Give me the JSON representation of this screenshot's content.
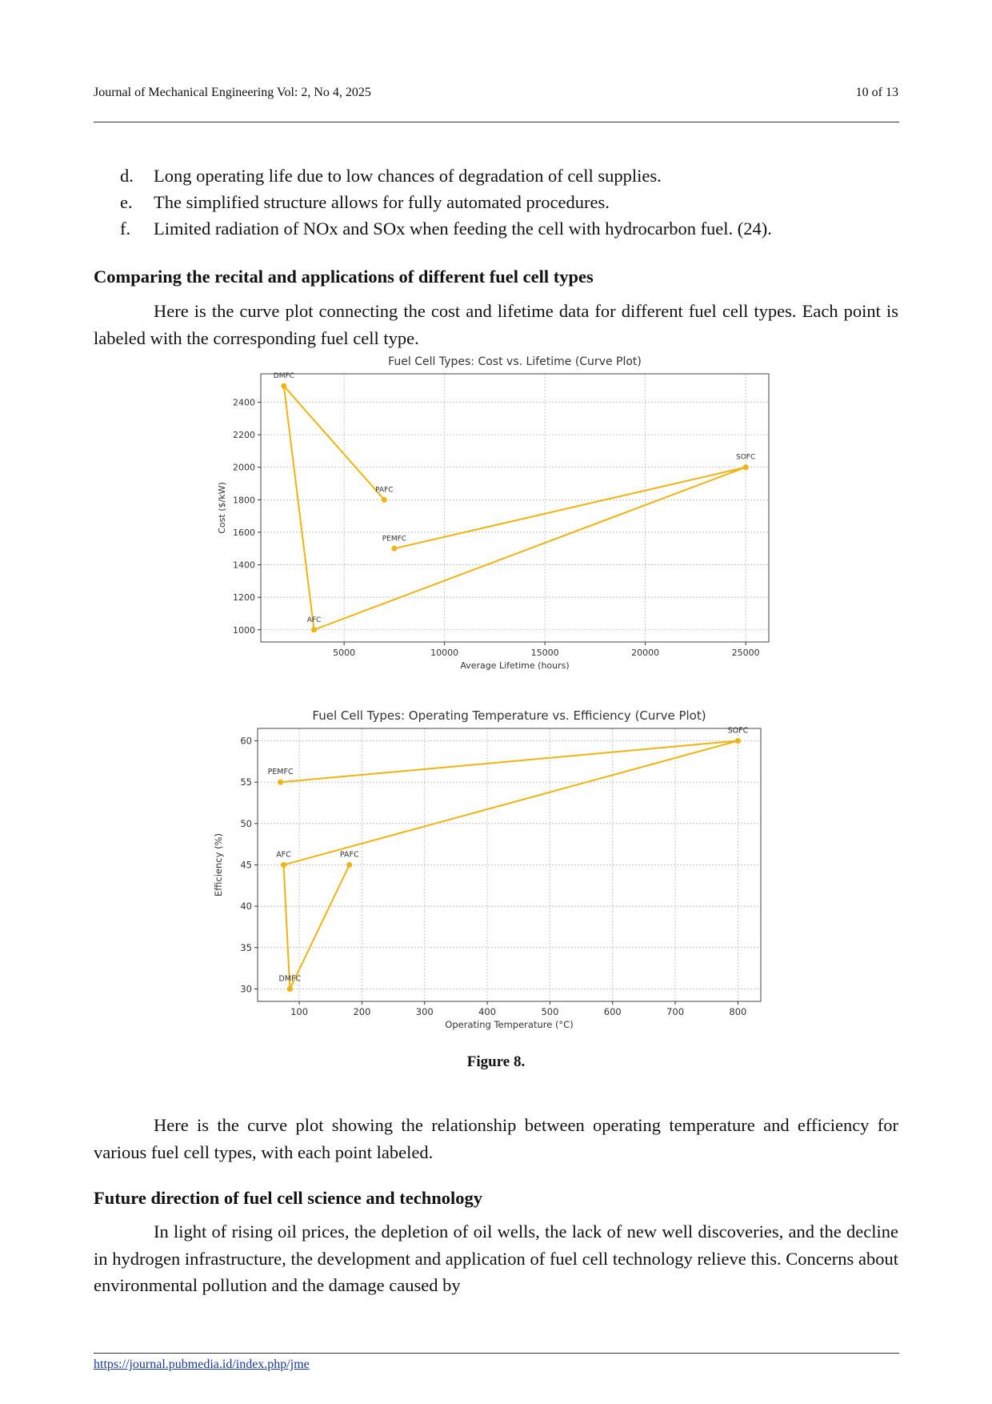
{
  "header": {
    "journal": "Journal of Mechanical Engineering Vol: 2, No 4, 2025",
    "page": "10 of 13"
  },
  "list": [
    {
      "marker": "d.",
      "text": "Long operating life due to low chances of degradation of cell supplies."
    },
    {
      "marker": "e.",
      "text": "The simplified structure allows for fully automated procedures."
    },
    {
      "marker": "f.",
      "text": "Limited radiation of NOx and SOx when feeding the cell with hydrocarbon fuel. (24)."
    }
  ],
  "section_1": {
    "heading": "Comparing the recital and applications of different fuel cell types",
    "paragraph": "Here is the curve plot connecting the cost and lifetime data for different fuel cell types. Each point is labeled with the corresponding fuel cell type."
  },
  "chart_data": [
    {
      "type": "line",
      "title": "Fuel Cell Types: Cost vs. Lifetime (Curve Plot)",
      "x_label": "Average Lifetime (hours)",
      "y_label": "Cost ($/kW)",
      "point_labels": [
        "PEMFC",
        "SOFC",
        "AFC",
        "DMFC",
        "PAFC"
      ],
      "x": [
        7500,
        25000,
        3500,
        2000,
        7000
      ],
      "values": [
        1500,
        2000,
        1000,
        2500,
        1800
      ],
      "color": "#f0b30f",
      "xlim": [
        850,
        26150
      ],
      "ylim": [
        925,
        2575
      ],
      "xticks": [
        5000,
        10000,
        15000,
        20000,
        25000
      ],
      "yticks": [
        1000,
        1200,
        1400,
        1600,
        1800,
        2000,
        2200,
        2400
      ],
      "grid": true
    },
    {
      "type": "line",
      "title": "Fuel Cell Types: Operating Temperature vs. Efficiency (Curve Plot)",
      "x_label": "Operating Temperature (°C)",
      "y_label": "Efficiency (%)",
      "point_labels": [
        "PEMFC",
        "SOFC",
        "AFC",
        "DMFC",
        "PAFC"
      ],
      "x": [
        70,
        800,
        75,
        85,
        180
      ],
      "values": [
        55,
        60,
        45,
        30,
        45
      ],
      "color": "#f0b30f",
      "xlim": [
        33.5,
        836.5
      ],
      "ylim": [
        28.5,
        61.5
      ],
      "xticks": [
        100,
        200,
        300,
        400,
        500,
        600,
        700,
        800
      ],
      "yticks": [
        30,
        35,
        40,
        45,
        50,
        55,
        60
      ],
      "grid": true
    }
  ],
  "figure_caption": "Figure 8.",
  "paragraph_after_figure": "Here is the curve plot showing the relationship between operating temperature and efficiency for various fuel cell types, with each point labeled.",
  "section_2": {
    "heading": "Future direction of fuel cell science and technology",
    "paragraph": "In light of rising oil prices, the depletion of oil wells, the lack of new well discoveries, and the decline in hydrogen infrastructure, the development and application of fuel cell technology relieve this. Concerns about environmental pollution and the damage caused by"
  },
  "footer": {
    "url": "https://journal.pubmedia.id/index.php/jme"
  }
}
